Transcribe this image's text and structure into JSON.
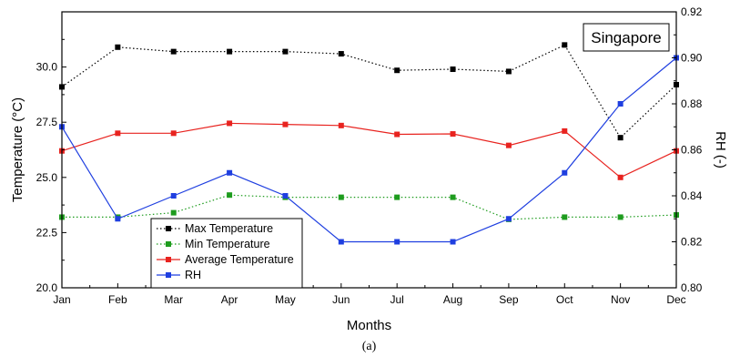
{
  "chart_data": {
    "type": "line",
    "categories": [
      "Jan",
      "Feb",
      "Mar",
      "Apr",
      "May",
      "Jun",
      "Jul",
      "Aug",
      "Sep",
      "Oct",
      "Nov",
      "Dec"
    ],
    "xlabel": "Months",
    "ylabel": "Temperature (°C)",
    "y2label": "RH (-)",
    "ylim": [
      20.0,
      32.5
    ],
    "y2lim": [
      0.8,
      0.92
    ],
    "yticks": [
      "20.0",
      "22.5",
      "25.0",
      "27.5",
      "30.0"
    ],
    "y2ticks": [
      "0.80",
      "0.82",
      "0.84",
      "0.86",
      "0.88",
      "0.90",
      "0.92"
    ],
    "annotation": "Singapore",
    "caption": "(a)",
    "legend_position": "bottom-left",
    "grid": false,
    "series": [
      {
        "name": "Max Temperature",
        "axis": "left",
        "color": "#000000",
        "line": "dotted",
        "values": [
          29.1,
          30.9,
          30.7,
          30.7,
          30.7,
          30.6,
          29.85,
          29.9,
          29.8,
          31.0,
          26.8,
          29.2
        ]
      },
      {
        "name": "Min Temperature",
        "axis": "left",
        "color": "#1e9c1e",
        "line": "dotted",
        "values": [
          23.2,
          23.2,
          23.4,
          24.2,
          24.1,
          24.1,
          24.1,
          24.1,
          23.1,
          23.2,
          23.2,
          23.3
        ]
      },
      {
        "name": "Average Temperature",
        "axis": "left",
        "color": "#e8231f",
        "line": "solid",
        "values": [
          26.2,
          27.0,
          27.0,
          27.45,
          27.4,
          27.35,
          26.95,
          26.97,
          26.45,
          27.1,
          25.0,
          26.2
        ]
      },
      {
        "name": "RH",
        "axis": "right",
        "color": "#1f3fe0",
        "line": "solid",
        "values": [
          0.87,
          0.83,
          0.84,
          0.85,
          0.84,
          0.82,
          0.82,
          0.82,
          0.83,
          0.85,
          0.88,
          0.9
        ]
      }
    ]
  }
}
